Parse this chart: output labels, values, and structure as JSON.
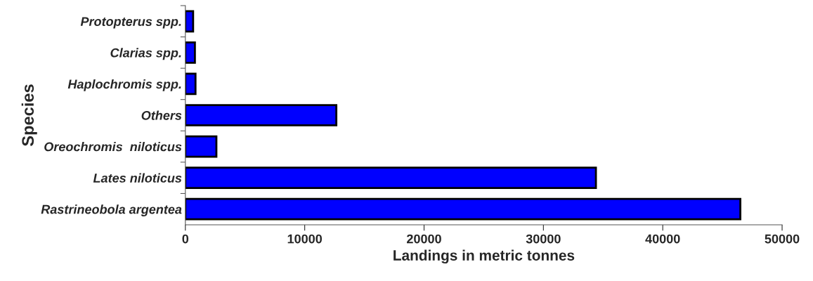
{
  "chart_data": {
    "type": "bar",
    "orientation": "horizontal",
    "xlabel": "Landings in metric tonnes",
    "ylabel": "Species",
    "categories": [
      "Protopterus spp.",
      "Clarias spp.",
      "Haplochromis spp.",
      "Others",
      "Oreochromis  niloticus",
      "Lates niloticus",
      "Rastrineobola argentea"
    ],
    "values": [
      650,
      800,
      850,
      12650,
      2600,
      34400,
      46500
    ],
    "color": "#0000ff",
    "xlim": [
      0,
      50000
    ],
    "xticks": [
      0,
      10000,
      20000,
      30000,
      40000,
      50000
    ],
    "grid": false
  }
}
